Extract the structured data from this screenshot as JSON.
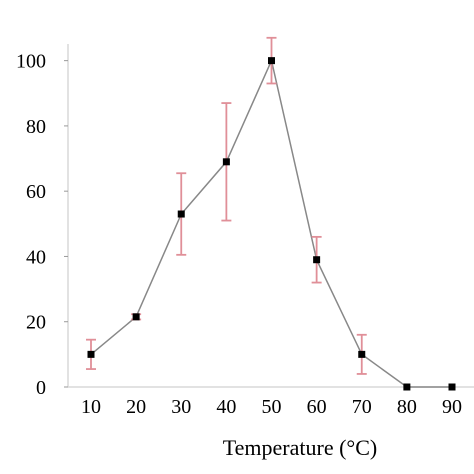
{
  "chart_data": {
    "type": "line",
    "title": "",
    "xlabel": "Temperature (°C)",
    "ylabel": "",
    "xlim": [
      5,
      95
    ],
    "ylim": [
      0,
      110
    ],
    "x_ticks": [
      10,
      20,
      30,
      40,
      50,
      60,
      70,
      80,
      90
    ],
    "y_ticks": [
      0,
      20,
      40,
      60,
      80,
      100
    ],
    "y_tick_labels": [
      "0",
      "20",
      "40",
      "60",
      "80",
      "100"
    ],
    "grid": false,
    "series": [
      {
        "x": [
          10,
          20,
          30,
          40,
          50,
          60,
          70,
          80,
          90
        ],
        "y": [
          10,
          21.5,
          53,
          69,
          100,
          39,
          10,
          0,
          0
        ],
        "error": [
          4.5,
          0.8,
          12.5,
          18,
          7,
          7,
          6,
          0,
          0
        ],
        "color": "#888888",
        "marker_color": "#000000",
        "error_color": "#e08f98"
      }
    ],
    "axis_color": "#d9d9d9"
  }
}
